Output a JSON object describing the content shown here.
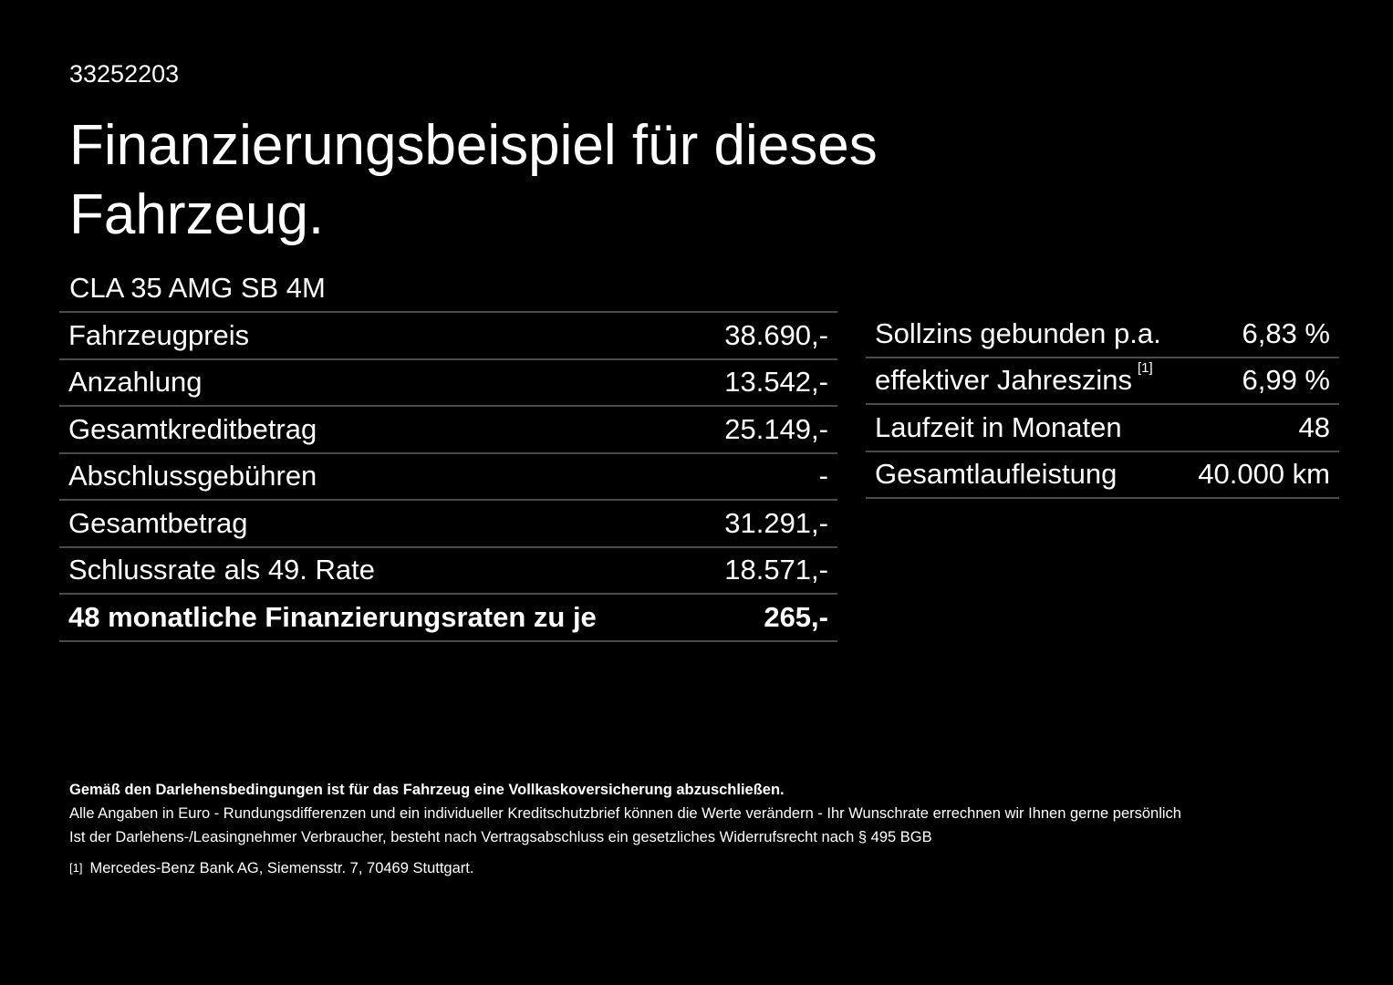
{
  "offer_id": "33252203",
  "title": "Finanzierungsbeispiel für dieses Fahrzeug.",
  "model": "CLA 35 AMG SB 4M",
  "left_table": [
    {
      "label": "Fahrzeugpreis",
      "value": "38.690,-"
    },
    {
      "label": "Anzahlung",
      "value": "13.542,-"
    },
    {
      "label": "Gesamtkreditbetrag",
      "value": "25.149,-"
    },
    {
      "label": "Abschlussgebühren",
      "value": "-"
    },
    {
      "label": "Gesamtbetrag",
      "value": "31.291,-"
    },
    {
      "label": "Schlussrate als 49. Rate",
      "value": "18.571,-"
    },
    {
      "label": "48 monatliche Finanzierungsraten zu je",
      "value": "265,-"
    }
  ],
  "right_table": [
    {
      "label": "Sollzins gebunden p.a.",
      "sup": "",
      "value": "6,83 %"
    },
    {
      "label": "effektiver Jahreszins",
      "sup": "[1]",
      "value": "6,99 %"
    },
    {
      "label": "Laufzeit in Monaten",
      "sup": "",
      "value": "48"
    },
    {
      "label": "Gesamtlaufleistung",
      "sup": "",
      "value": "40.000 km"
    }
  ],
  "notes": {
    "bold": "Gemäß den Darlehensbedingungen ist für das Fahrzeug eine Vollkaskoversicherung abzuschließen.",
    "line1": "Alle Angaben in Euro - Rundungsdifferenzen und ein individueller Kreditschutzbrief können die Werte verändern - Ihr Wunschrate errechnen wir Ihnen gerne persönlich",
    "line2": "Ist der Darlehens-/Leasingnehmer Verbraucher, besteht nach Vertragsabschluss ein gesetzliches Widerrufsrecht nach § 495 BGB",
    "footnote_marker": "[1]",
    "footnote": "Mercedes-Benz Bank AG, Siemensstr. 7, 70469 Stuttgart."
  }
}
